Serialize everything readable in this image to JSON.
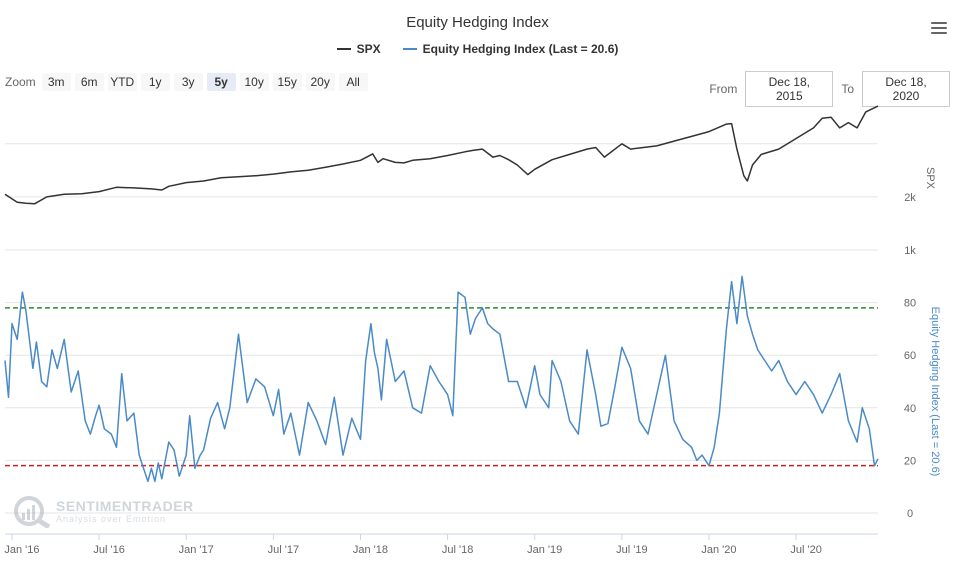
{
  "chart_title": "Equity Hedging Index",
  "legend": [
    {
      "name": "SPX",
      "color": "#333333"
    },
    {
      "name": "Equity Hedging Index (Last = 20.6)",
      "color": "#4a8ac7"
    }
  ],
  "zoom": {
    "label": "Zoom",
    "buttons": [
      "3m",
      "6m",
      "YTD",
      "1y",
      "3y",
      "5y",
      "10y",
      "15y",
      "20y",
      "All"
    ],
    "active": "5y"
  },
  "range": {
    "from_label": "From",
    "from_value": "Dec 18, 2015",
    "to_label": "To",
    "to_value": "Dec 18, 2020"
  },
  "watermark": {
    "name": "SENTIMENTRADER",
    "tagline": "Analysis over Emotion"
  },
  "colors": {
    "spx": "#333333",
    "ehi": "#4a8ac7",
    "upper_line": "#2e8b2e",
    "lower_line": "#cc2222"
  },
  "chart_data": {
    "type": "line",
    "title": "Equity Hedging Index",
    "x_range": [
      2015.96,
      2020.97
    ],
    "x_ticks": [
      {
        "label": "Jan '16",
        "t": 2016.0
      },
      {
        "label": "Jul '16",
        "t": 2016.5
      },
      {
        "label": "Jan '17",
        "t": 2017.0
      },
      {
        "label": "Jul '17",
        "t": 2017.5
      },
      {
        "label": "Jan '18",
        "t": 2018.0
      },
      {
        "label": "Jul '18",
        "t": 2018.5
      },
      {
        "label": "Jan '19",
        "t": 2019.0
      },
      {
        "label": "Jul '19",
        "t": 2019.5
      },
      {
        "label": "Jan '20",
        "t": 2020.0
      },
      {
        "label": "Jul '20",
        "t": 2020.5
      }
    ],
    "spx_axis": {
      "label": "SPX",
      "ticks": [
        {
          "label": "1k",
          "value": 1000
        },
        {
          "label": "2k",
          "value": 2000
        }
      ]
    },
    "ehi_axis": {
      "label": "Equity Hedging Index (Last = 20.6)",
      "ticks": [
        0,
        20,
        40,
        60,
        80
      ],
      "range": [
        0,
        100
      ]
    },
    "reference_lines": [
      {
        "value": 78,
        "color": "#2e8b2e"
      },
      {
        "value": 18,
        "color": "#cc2222"
      }
    ],
    "series": [
      {
        "name": "SPX",
        "x": [
          2015.96,
          2016.03,
          2016.08,
          2016.13,
          2016.2,
          2016.3,
          2016.4,
          2016.5,
          2016.6,
          2016.7,
          2016.8,
          2016.86,
          2016.9,
          2017.0,
          2017.1,
          2017.2,
          2017.3,
          2017.4,
          2017.5,
          2017.6,
          2017.7,
          2017.8,
          2017.9,
          2018.0,
          2018.07,
          2018.1,
          2018.13,
          2018.2,
          2018.25,
          2018.3,
          2018.4,
          2018.5,
          2018.6,
          2018.65,
          2018.7,
          2018.76,
          2018.8,
          2018.85,
          2018.9,
          2018.96,
          2019.0,
          2019.1,
          2019.2,
          2019.3,
          2019.35,
          2019.4,
          2019.5,
          2019.55,
          2019.6,
          2019.7,
          2019.8,
          2019.9,
          2020.0,
          2020.1,
          2020.13,
          2020.16,
          2020.2,
          2020.22,
          2020.25,
          2020.3,
          2020.4,
          2020.5,
          2020.6,
          2020.65,
          2020.7,
          2020.75,
          2020.8,
          2020.85,
          2020.9,
          2020.97
        ],
        "values": [
          2050,
          1900,
          1880,
          1870,
          2000,
          2050,
          2060,
          2100,
          2180,
          2170,
          2150,
          2130,
          2200,
          2270,
          2300,
          2360,
          2380,
          2400,
          2430,
          2470,
          2500,
          2560,
          2620,
          2690,
          2810,
          2650,
          2720,
          2650,
          2640,
          2690,
          2720,
          2780,
          2850,
          2880,
          2900,
          2750,
          2780,
          2700,
          2600,
          2420,
          2520,
          2700,
          2800,
          2900,
          2930,
          2750,
          3000,
          2900,
          2920,
          2960,
          3050,
          3140,
          3230,
          3370,
          3380,
          2900,
          2400,
          2300,
          2600,
          2800,
          2900,
          3100,
          3300,
          3480,
          3500,
          3300,
          3400,
          3300,
          3600,
          3710
        ]
      },
      {
        "name": "Equity Hedging Index (Last = 20.6)",
        "x": [
          2015.96,
          2015.98,
          2016.0,
          2016.03,
          2016.06,
          2016.08,
          2016.1,
          2016.12,
          2016.14,
          2016.17,
          2016.2,
          2016.23,
          2016.26,
          2016.3,
          2016.34,
          2016.38,
          2016.42,
          2016.45,
          2016.48,
          2016.5,
          2016.53,
          2016.57,
          2016.6,
          2016.63,
          2016.66,
          2016.7,
          2016.73,
          2016.76,
          2016.78,
          2016.8,
          2016.82,
          2016.84,
          2016.86,
          2016.9,
          2016.93,
          2016.96,
          2017.0,
          2017.02,
          2017.05,
          2017.08,
          2017.1,
          2017.14,
          2017.18,
          2017.22,
          2017.25,
          2017.3,
          2017.35,
          2017.4,
          2017.45,
          2017.5,
          2017.53,
          2017.56,
          2017.6,
          2017.65,
          2017.7,
          2017.75,
          2017.8,
          2017.85,
          2017.9,
          2017.95,
          2018.0,
          2018.03,
          2018.06,
          2018.08,
          2018.1,
          2018.12,
          2018.15,
          2018.2,
          2018.25,
          2018.3,
          2018.35,
          2018.4,
          2018.45,
          2018.5,
          2018.53,
          2018.56,
          2018.6,
          2018.63,
          2018.66,
          2018.7,
          2018.73,
          2018.76,
          2018.8,
          2018.85,
          2018.9,
          2018.95,
          2019.0,
          2019.03,
          2019.06,
          2019.08,
          2019.1,
          2019.15,
          2019.2,
          2019.25,
          2019.3,
          2019.35,
          2019.38,
          2019.42,
          2019.46,
          2019.5,
          2019.55,
          2019.6,
          2019.65,
          2019.7,
          2019.75,
          2019.8,
          2019.85,
          2019.9,
          2019.93,
          2019.96,
          2020.0,
          2020.03,
          2020.06,
          2020.1,
          2020.13,
          2020.16,
          2020.19,
          2020.22,
          2020.25,
          2020.28,
          2020.32,
          2020.36,
          2020.4,
          2020.45,
          2020.5,
          2020.55,
          2020.6,
          2020.65,
          2020.7,
          2020.75,
          2020.8,
          2020.85,
          2020.88,
          2020.92,
          2020.95,
          2020.97
        ],
        "values": [
          58,
          44,
          72,
          66,
          84,
          77,
          66,
          55,
          65,
          50,
          48,
          62,
          55,
          66,
          46,
          54,
          35,
          30,
          37,
          41,
          32,
          30,
          25,
          53,
          35,
          38,
          22,
          16,
          12,
          17,
          12,
          19,
          13,
          27,
          24,
          14,
          22,
          37,
          17,
          22,
          24,
          36,
          42,
          32,
          40,
          68,
          42,
          51,
          48,
          37,
          47,
          30,
          38,
          22,
          42,
          35,
          26,
          44,
          22,
          36,
          28,
          58,
          72,
          61,
          55,
          43,
          66,
          50,
          54,
          40,
          38,
          56,
          50,
          45,
          37,
          84,
          82,
          68,
          74,
          78,
          72,
          70,
          68,
          50,
          50,
          40,
          56,
          45,
          42,
          40,
          58,
          50,
          35,
          30,
          62,
          45,
          33,
          34,
          48,
          63,
          55,
          35,
          30,
          45,
          60,
          35,
          28,
          25,
          20,
          22,
          18,
          25,
          38,
          70,
          88,
          72,
          90,
          75,
          68,
          62,
          58,
          54,
          58,
          50,
          45,
          50,
          45,
          38,
          45,
          53,
          35,
          27,
          40,
          32,
          18,
          20.6
        ]
      }
    ]
  }
}
